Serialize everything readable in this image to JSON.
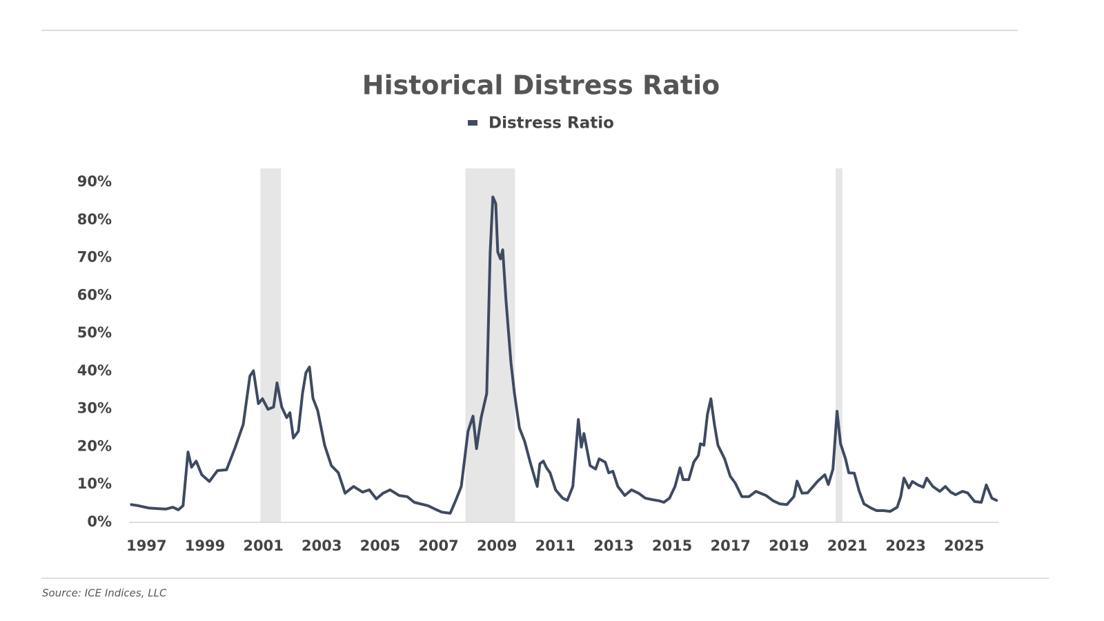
{
  "chart_data": {
    "type": "line",
    "title": "Historical Distress Ratio",
    "source": "Source: ICE Indices, LLC",
    "x": [
      1996.48,
      1996.72,
      1997.07,
      1997.43,
      1997.66,
      1997.9,
      1998.09,
      1998.25,
      1998.42,
      1998.54,
      1998.7,
      1998.89,
      1999.15,
      1999.43,
      1999.74,
      2000.02,
      2000.31,
      2000.54,
      2000.66,
      2000.83,
      2000.97,
      2001.16,
      2001.35,
      2001.47,
      2001.63,
      2001.8,
      2001.91,
      2002.03,
      2002.2,
      2002.34,
      2002.46,
      2002.58,
      2002.7,
      2002.86,
      2003.1,
      2003.33,
      2003.57,
      2003.8,
      2004.09,
      2004.4,
      2004.63,
      2004.87,
      2005.1,
      2005.34,
      2005.65,
      2005.93,
      2006.17,
      2006.64,
      2006.88,
      2007.11,
      2007.4,
      2007.59,
      2007.78,
      2008.01,
      2008.18,
      2008.3,
      2008.46,
      2008.65,
      2008.77,
      2008.86,
      2008.96,
      2009.03,
      2009.12,
      2009.2,
      2009.31,
      2009.48,
      2009.6,
      2009.77,
      2009.95,
      2010.14,
      2010.31,
      2010.38,
      2010.47,
      2010.59,
      2010.7,
      2010.82,
      2011.01,
      2011.25,
      2011.41,
      2011.6,
      2011.79,
      2011.89,
      2011.98,
      2012.19,
      2012.38,
      2012.5,
      2012.71,
      2012.83,
      2012.97,
      2013.14,
      2013.38,
      2013.61,
      2013.85,
      2014.08,
      2014.32,
      2014.56,
      2014.72,
      2014.91,
      2015.1,
      2015.27,
      2015.38,
      2015.57,
      2015.74,
      2015.9,
      2015.97,
      2016.09,
      2016.21,
      2016.33,
      2016.45,
      2016.57,
      2016.8,
      2016.99,
      2017.16,
      2017.39,
      2017.63,
      2017.87,
      2018.22,
      2018.46,
      2018.69,
      2018.93,
      2019.17,
      2019.28,
      2019.45,
      2019.64,
      2019.83,
      2019.99,
      2020.23,
      2020.35,
      2020.51,
      2020.65,
      2020.77,
      2020.94,
      2021.05,
      2021.24,
      2021.41,
      2021.57,
      2021.81,
      2022.0,
      2022.24,
      2022.47,
      2022.71,
      2022.83,
      2022.94,
      2023.11,
      2023.23,
      2023.42,
      2023.6,
      2023.72,
      2023.93,
      2024.17,
      2024.36,
      2024.54,
      2024.71,
      2024.95,
      2025.12,
      2025.36,
      2025.59,
      2025.76,
      2025.95,
      2026.11
    ],
    "series": [
      {
        "name": "Distress Ratio",
        "color": "#3e4a61",
        "values": [
          4.7,
          4.4,
          3.8,
          3.6,
          3.5,
          4.0,
          3.3,
          4.4,
          18.6,
          14.6,
          16.2,
          12.6,
          10.8,
          13.7,
          13.9,
          19.5,
          25.9,
          38.7,
          40.1,
          31.4,
          32.7,
          29.9,
          30.5,
          36.9,
          30.5,
          27.7,
          29.0,
          22.3,
          24.1,
          34.1,
          39.6,
          41.1,
          32.8,
          29.6,
          20.4,
          15.0,
          13.1,
          7.7,
          9.5,
          8.0,
          8.6,
          6.2,
          7.7,
          8.6,
          7.1,
          6.8,
          5.3,
          4.4,
          3.5,
          2.7,
          2.4,
          5.8,
          9.5,
          24.1,
          28.1,
          19.5,
          27.7,
          34.1,
          71.5,
          86.1,
          84.3,
          71.5,
          69.7,
          72.1,
          58.8,
          42.3,
          34.1,
          25.0,
          21.4,
          15.9,
          11.3,
          9.5,
          15.5,
          16.2,
          14.4,
          13.1,
          8.6,
          6.4,
          5.8,
          9.5,
          27.2,
          19.9,
          23.5,
          15.0,
          14.1,
          16.8,
          15.9,
          13.1,
          13.5,
          9.5,
          7.1,
          8.6,
          7.7,
          6.4,
          6.0,
          5.7,
          5.3,
          6.4,
          9.5,
          14.4,
          11.3,
          11.3,
          15.9,
          17.7,
          20.8,
          20.4,
          28.6,
          32.7,
          25.9,
          20.4,
          16.8,
          12.2,
          10.4,
          6.8,
          6.8,
          8.2,
          7.1,
          5.7,
          4.9,
          4.7,
          6.8,
          10.9,
          7.7,
          7.8,
          9.5,
          10.9,
          12.6,
          10.0,
          14.1,
          29.4,
          20.8,
          16.8,
          13.1,
          13.0,
          8.2,
          4.9,
          3.8,
          3.1,
          3.1,
          2.9,
          4.0,
          6.8,
          11.7,
          9.1,
          10.8,
          9.9,
          9.3,
          11.7,
          9.5,
          8.2,
          9.5,
          8.0,
          7.3,
          8.2,
          7.8,
          5.5,
          5.3,
          9.9,
          6.4,
          5.8
        ]
      }
    ],
    "recessions": [
      [
        2000.9,
        2001.6
      ],
      [
        2007.92,
        2009.62
      ],
      [
        2020.6,
        2020.83
      ]
    ],
    "xlim": [
      1996.4,
      2026.2
    ],
    "xticks": [
      1997,
      1999,
      2001,
      2003,
      2005,
      2007,
      2009,
      2011,
      2013,
      2015,
      2017,
      2019,
      2021,
      2023,
      2025
    ],
    "ylim": [
      0,
      90
    ],
    "yticks": [
      {
        "value": 0,
        "label": "0%"
      },
      {
        "value": 10,
        "label": "10%"
      },
      {
        "value": 20,
        "label": "20%"
      },
      {
        "value": 30,
        "label": "30%"
      },
      {
        "value": 40,
        "label": "40%"
      },
      {
        "value": 50,
        "label": "50%"
      },
      {
        "value": 60,
        "label": "60%"
      },
      {
        "value": 70,
        "label": "70%"
      },
      {
        "value": 80,
        "label": "80%"
      },
      {
        "value": 90,
        "label": "90%"
      }
    ],
    "legend": "top"
  }
}
